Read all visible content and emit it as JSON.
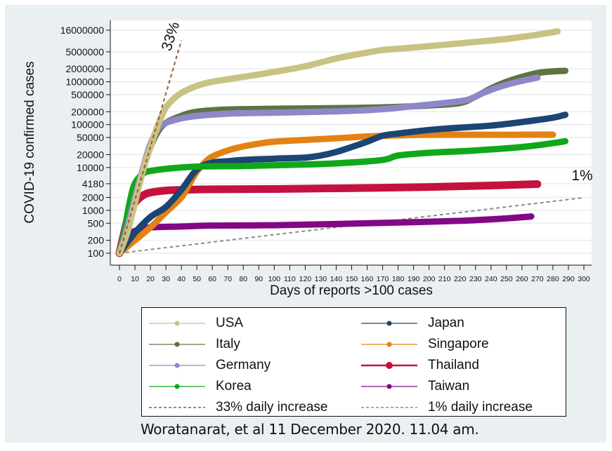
{
  "chart_data": {
    "type": "line",
    "title": "",
    "xlabel": "Days of reports >100 cases",
    "ylabel": "COVID-19 confirmed cases",
    "yscale": "log",
    "xlim": [
      0,
      300
    ],
    "ylim": [
      100,
      16000000
    ],
    "x_ticks": [
      0,
      10,
      20,
      30,
      40,
      50,
      60,
      70,
      80,
      90,
      100,
      110,
      120,
      130,
      140,
      150,
      160,
      170,
      180,
      190,
      200,
      210,
      220,
      230,
      240,
      250,
      260,
      270,
      280,
      290,
      300
    ],
    "y_ticks": [
      100,
      200,
      500,
      1000,
      2000,
      4180,
      10000,
      20000,
      50000,
      100000,
      200000,
      500000,
      1000000,
      2000000,
      5000000,
      16000000
    ],
    "grid": true,
    "legend_position": "bottom",
    "series": [
      {
        "name": "USA",
        "color": "#c9c283",
        "points": [
          [
            0,
            100
          ],
          [
            5,
            300
          ],
          [
            10,
            1500
          ],
          [
            15,
            8000
          ],
          [
            20,
            30000
          ],
          [
            25,
            100000
          ],
          [
            30,
            250000
          ],
          [
            35,
            400000
          ],
          [
            40,
            550000
          ],
          [
            50,
            800000
          ],
          [
            60,
            1000000
          ],
          [
            80,
            1300000
          ],
          [
            100,
            1700000
          ],
          [
            120,
            2300000
          ],
          [
            140,
            3500000
          ],
          [
            160,
            4800000
          ],
          [
            170,
            5500000
          ],
          [
            190,
            6300000
          ],
          [
            210,
            7300000
          ],
          [
            230,
            8500000
          ],
          [
            250,
            10000000
          ],
          [
            270,
            12500000
          ],
          [
            283,
            15000000
          ]
        ]
      },
      {
        "name": "Italy",
        "color": "#5e7340",
        "points": [
          [
            0,
            100
          ],
          [
            5,
            300
          ],
          [
            10,
            1600
          ],
          [
            15,
            8000
          ],
          [
            20,
            30000
          ],
          [
            25,
            70000
          ],
          [
            30,
            110000
          ],
          [
            40,
            160000
          ],
          [
            50,
            200000
          ],
          [
            70,
            225000
          ],
          [
            100,
            235000
          ],
          [
            150,
            245000
          ],
          [
            180,
            260000
          ],
          [
            200,
            280000
          ],
          [
            220,
            320000
          ],
          [
            230,
            450000
          ],
          [
            240,
            700000
          ],
          [
            250,
            1000000
          ],
          [
            260,
            1300000
          ],
          [
            270,
            1600000
          ],
          [
            280,
            1750000
          ],
          [
            288,
            1800000
          ]
        ]
      },
      {
        "name": "Germany",
        "color": "#8e88c9",
        "points": [
          [
            0,
            100
          ],
          [
            5,
            400
          ],
          [
            10,
            2000
          ],
          [
            15,
            9000
          ],
          [
            20,
            35000
          ],
          [
            25,
            80000
          ],
          [
            30,
            110000
          ],
          [
            40,
            140000
          ],
          [
            50,
            160000
          ],
          [
            70,
            180000
          ],
          [
            100,
            190000
          ],
          [
            130,
            200000
          ],
          [
            150,
            210000
          ],
          [
            170,
            230000
          ],
          [
            190,
            270000
          ],
          [
            210,
            320000
          ],
          [
            225,
            380000
          ],
          [
            235,
            550000
          ],
          [
            245,
            750000
          ],
          [
            255,
            950000
          ],
          [
            265,
            1150000
          ],
          [
            270,
            1250000
          ]
        ]
      },
      {
        "name": "Korea",
        "color": "#10a81a",
        "points": [
          [
            0,
            100
          ],
          [
            3,
            300
          ],
          [
            6,
            1200
          ],
          [
            9,
            3500
          ],
          [
            12,
            5500
          ],
          [
            16,
            7500
          ],
          [
            20,
            8300
          ],
          [
            30,
            9300
          ],
          [
            50,
            10500
          ],
          [
            80,
            10800
          ],
          [
            110,
            11500
          ],
          [
            140,
            12500
          ],
          [
            170,
            15000
          ],
          [
            180,
            19000
          ],
          [
            200,
            22000
          ],
          [
            230,
            25000
          ],
          [
            260,
            30000
          ],
          [
            280,
            37000
          ],
          [
            288,
            41000
          ]
        ]
      },
      {
        "name": "Japan",
        "color": "#1b4574",
        "points": [
          [
            0,
            100
          ],
          [
            10,
            300
          ],
          [
            20,
            700
          ],
          [
            30,
            1200
          ],
          [
            40,
            3000
          ],
          [
            50,
            9000
          ],
          [
            60,
            13000
          ],
          [
            70,
            14000
          ],
          [
            80,
            15000
          ],
          [
            100,
            16000
          ],
          [
            120,
            17000
          ],
          [
            130,
            19000
          ],
          [
            140,
            23000
          ],
          [
            150,
            30000
          ],
          [
            160,
            40000
          ],
          [
            170,
            55000
          ],
          [
            180,
            62000
          ],
          [
            200,
            75000
          ],
          [
            220,
            85000
          ],
          [
            240,
            95000
          ],
          [
            260,
            115000
          ],
          [
            280,
            145000
          ],
          [
            288,
            170000
          ]
        ]
      },
      {
        "name": "Singapore",
        "color": "#e38212",
        "points": [
          [
            0,
            100
          ],
          [
            10,
            200
          ],
          [
            20,
            400
          ],
          [
            30,
            900
          ],
          [
            40,
            2000
          ],
          [
            45,
            4000
          ],
          [
            50,
            8000
          ],
          [
            55,
            13000
          ],
          [
            60,
            18000
          ],
          [
            70,
            25000
          ],
          [
            80,
            31000
          ],
          [
            90,
            36000
          ],
          [
            100,
            40000
          ],
          [
            120,
            44000
          ],
          [
            140,
            48000
          ],
          [
            160,
            53000
          ],
          [
            180,
            56000
          ],
          [
            200,
            58000
          ],
          [
            240,
            58000
          ],
          [
            280,
            58300
          ]
        ]
      },
      {
        "name": "Thailand",
        "color": "#c5113e",
        "points": [
          [
            0,
            100
          ],
          [
            3,
            300
          ],
          [
            6,
            800
          ],
          [
            10,
            1500
          ],
          [
            15,
            2200
          ],
          [
            20,
            2600
          ],
          [
            30,
            2900
          ],
          [
            40,
            3000
          ],
          [
            60,
            3100
          ],
          [
            100,
            3150
          ],
          [
            150,
            3300
          ],
          [
            200,
            3500
          ],
          [
            240,
            3800
          ],
          [
            270,
            4100
          ]
        ]
      },
      {
        "name": "Taiwan",
        "color": "#830885",
        "points": [
          [
            0,
            100
          ],
          [
            3,
            200
          ],
          [
            6,
            280
          ],
          [
            10,
            330
          ],
          [
            15,
            380
          ],
          [
            20,
            400
          ],
          [
            40,
            420
          ],
          [
            60,
            440
          ],
          [
            100,
            450
          ],
          [
            140,
            480
          ],
          [
            180,
            520
          ],
          [
            220,
            570
          ],
          [
            250,
            650
          ],
          [
            266,
            720
          ]
        ]
      },
      {
        "name": "33% daily increase",
        "color": "#8e5a3f",
        "dashed": true,
        "points": [
          [
            0,
            100
          ],
          [
            40,
            9230000
          ]
        ]
      },
      {
        "name": "1% daily increase",
        "color": "#8a8a8a",
        "dashed": true,
        "points": [
          [
            0,
            100
          ],
          [
            300,
            1979
          ]
        ]
      }
    ],
    "annotations": [
      {
        "text": "33%",
        "at": [
          33,
          5000000
        ],
        "rotation": -72
      },
      {
        "text": "1%",
        "at": [
          292,
          5000
        ]
      }
    ]
  },
  "legend": {
    "items": [
      {
        "label": "USA",
        "color": "#c9c283",
        "style": "marker"
      },
      {
        "label": "Japan",
        "color": "#1b4574",
        "style": "marker"
      },
      {
        "label": "Italy",
        "color": "#5e7340",
        "style": "marker"
      },
      {
        "label": "Singapore",
        "color": "#e38212",
        "style": "marker"
      },
      {
        "label": "Germany",
        "color": "#8e88c9",
        "style": "marker"
      },
      {
        "label": "Thailand",
        "color": "#c5113e",
        "style": "marker-bold"
      },
      {
        "label": "Korea",
        "color": "#10a81a",
        "style": "marker"
      },
      {
        "label": "Taiwan",
        "color": "#830885",
        "style": "marker"
      },
      {
        "label": "33% daily increase",
        "color": "#8e5a3f",
        "style": "dashed"
      },
      {
        "label": "1% daily increase",
        "color": "#8a8a8a",
        "style": "dashed"
      }
    ]
  },
  "credit": "Woratanarat, et al 11 December 2020. 11.04 am."
}
